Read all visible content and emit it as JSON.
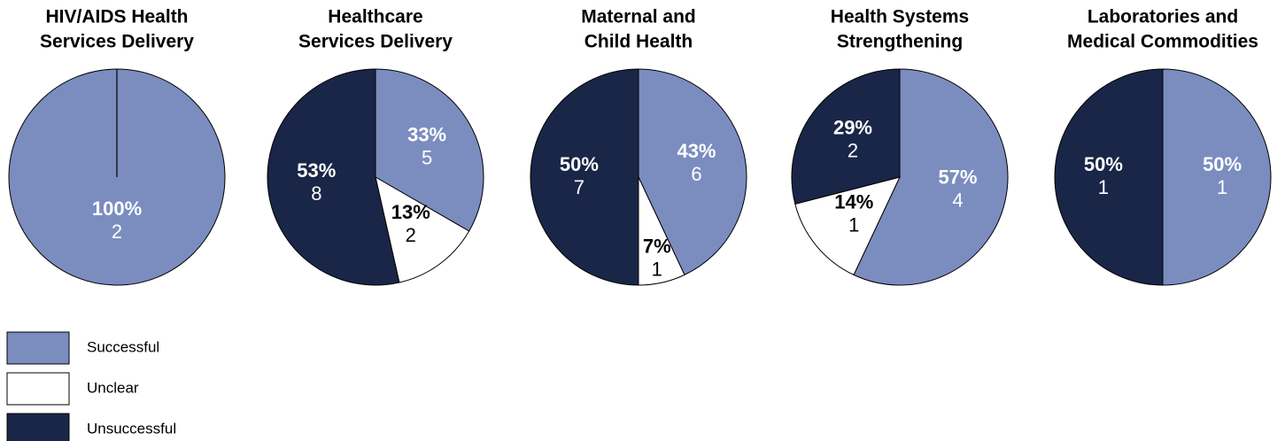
{
  "legend": {
    "items": [
      {
        "name": "Successful",
        "color": "#7b8dbf"
      },
      {
        "name": "Unclear",
        "color": "#ffffff"
      },
      {
        "name": "Unsuccessful",
        "color": "#1a2647"
      }
    ]
  },
  "chart_data": [
    {
      "type": "pie",
      "title": [
        "HIV/AIDS Health",
        "Services Delivery"
      ],
      "categories": [
        "Successful"
      ],
      "values": [
        100
      ],
      "value_labels": [
        "100%"
      ],
      "counts": [
        2
      ]
    },
    {
      "type": "pie",
      "title": [
        "Healthcare",
        "Services Delivery"
      ],
      "categories": [
        "Successful",
        "Unclear",
        "Unsuccessful"
      ],
      "values": [
        33,
        13,
        53
      ],
      "value_labels": [
        "33%",
        "13%",
        "53%"
      ],
      "counts": [
        5,
        2,
        8
      ]
    },
    {
      "type": "pie",
      "title": [
        "Maternal and",
        "Child Health"
      ],
      "categories": [
        "Successful",
        "Unclear",
        "Unsuccessful"
      ],
      "values": [
        43,
        7,
        50
      ],
      "value_labels": [
        "43%",
        "7%",
        "50%"
      ],
      "counts": [
        6,
        1,
        7
      ]
    },
    {
      "type": "pie",
      "title": [
        "Health Systems",
        "Strengthening"
      ],
      "categories": [
        "Successful",
        "Unclear",
        "Unsuccessful"
      ],
      "values": [
        57,
        14,
        29
      ],
      "value_labels": [
        "57%",
        "14%",
        "29%"
      ],
      "counts": [
        4,
        1,
        2
      ]
    },
    {
      "type": "pie",
      "title": [
        "Laboratories and",
        "Medical Commodities"
      ],
      "categories": [
        "Successful",
        "Unsuccessful"
      ],
      "values": [
        50,
        50
      ],
      "value_labels": [
        "50%",
        "50%"
      ],
      "counts": [
        1,
        1
      ]
    }
  ]
}
